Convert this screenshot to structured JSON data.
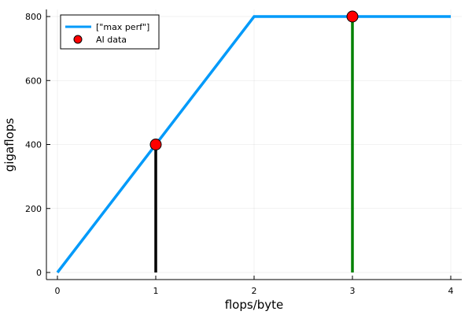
{
  "chart_data": {
    "type": "line",
    "title": "",
    "xlabel": "flops/byte",
    "ylabel": "gigaflops",
    "xlim": [
      0,
      4
    ],
    "ylim": [
      0,
      800
    ],
    "xticks": [
      0,
      1,
      2,
      3,
      4
    ],
    "yticks": [
      0,
      200,
      400,
      600,
      800
    ],
    "grid": true,
    "legend_position": "top-left",
    "series": [
      {
        "name": "[\"max perf\"]",
        "type": "line",
        "color": "#009AFA",
        "x": [
          0,
          2,
          4
        ],
        "y": [
          0,
          800,
          800
        ]
      },
      {
        "name": "AI data",
        "type": "scatter",
        "color": "#FF0000",
        "x": [
          1,
          3
        ],
        "y": [
          400,
          800
        ]
      }
    ],
    "vertical_lines": [
      {
        "x": 1,
        "y_from": 0,
        "y_to": 400,
        "color": "#000000"
      },
      {
        "x": 3,
        "y_from": 0,
        "y_to": 800,
        "color": "#008000"
      }
    ]
  }
}
